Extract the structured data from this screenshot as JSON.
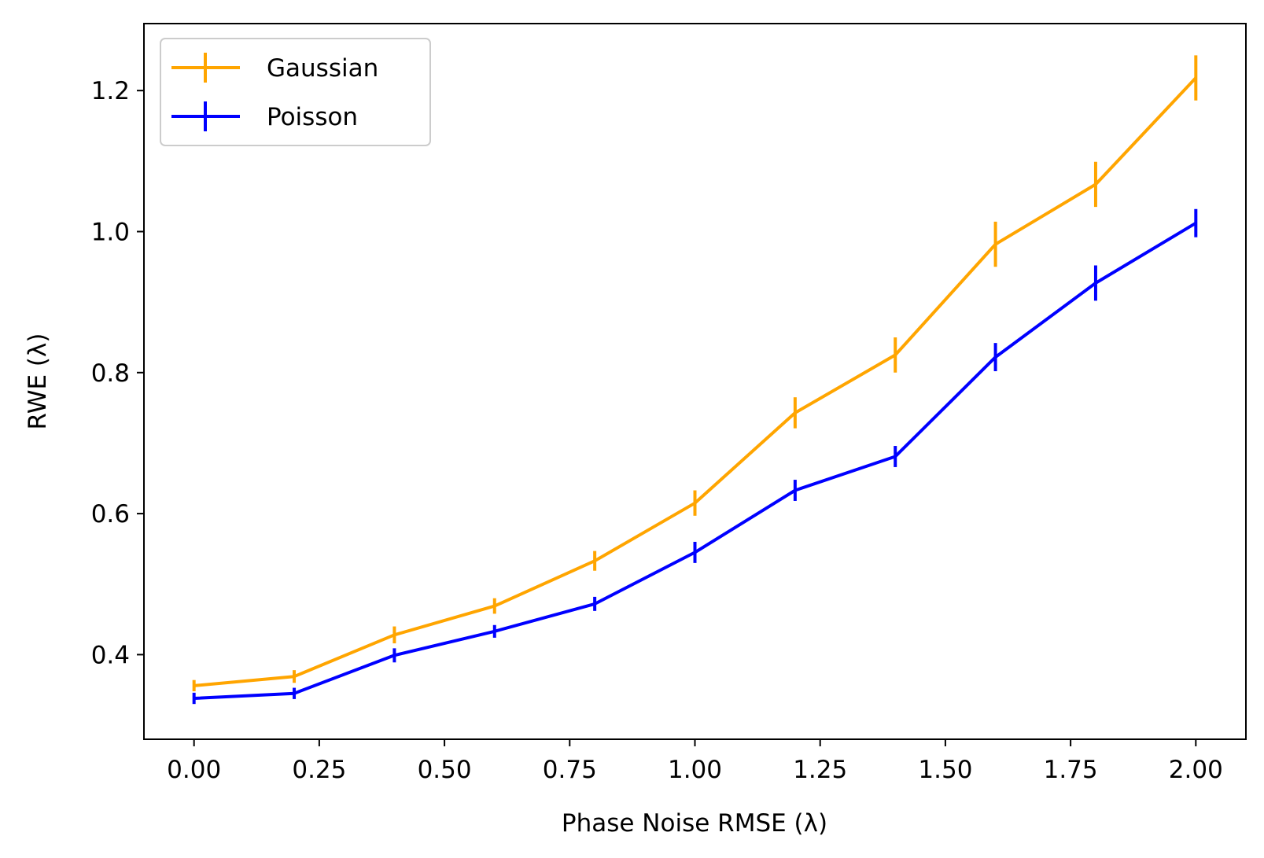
{
  "chart_data": {
    "type": "line",
    "xlabel": "Phase Noise RMSE (λ)",
    "ylabel": "RWE (λ)",
    "xlim": [
      -0.1,
      2.1
    ],
    "ylim": [
      0.28,
      1.295
    ],
    "xticks": [
      "0.00",
      "0.25",
      "0.50",
      "0.75",
      "1.00",
      "1.25",
      "1.50",
      "1.75",
      "2.00"
    ],
    "yticks": [
      "0.4",
      "0.6",
      "0.8",
      "1.0",
      "1.2"
    ],
    "legend_position": "top-left",
    "grid": false,
    "x": [
      0.0,
      0.2,
      0.4,
      0.6,
      0.8,
      1.0,
      1.2,
      1.4,
      1.6,
      1.8,
      2.0
    ],
    "series": [
      {
        "name": "Gaussian",
        "color": "#FFA500",
        "values": [
          0.356,
          0.369,
          0.428,
          0.469,
          0.533,
          0.615,
          0.743,
          0.825,
          0.982,
          1.067,
          1.218
        ],
        "errors": [
          0.008,
          0.009,
          0.012,
          0.011,
          0.014,
          0.018,
          0.022,
          0.025,
          0.032,
          0.032,
          0.032
        ]
      },
      {
        "name": "Poisson",
        "color": "#0000FF",
        "values": [
          0.338,
          0.345,
          0.399,
          0.433,
          0.472,
          0.545,
          0.633,
          0.681,
          0.822,
          0.927,
          1.012
        ],
        "errors": [
          0.008,
          0.008,
          0.01,
          0.009,
          0.01,
          0.015,
          0.015,
          0.015,
          0.02,
          0.025,
          0.02
        ]
      }
    ]
  }
}
